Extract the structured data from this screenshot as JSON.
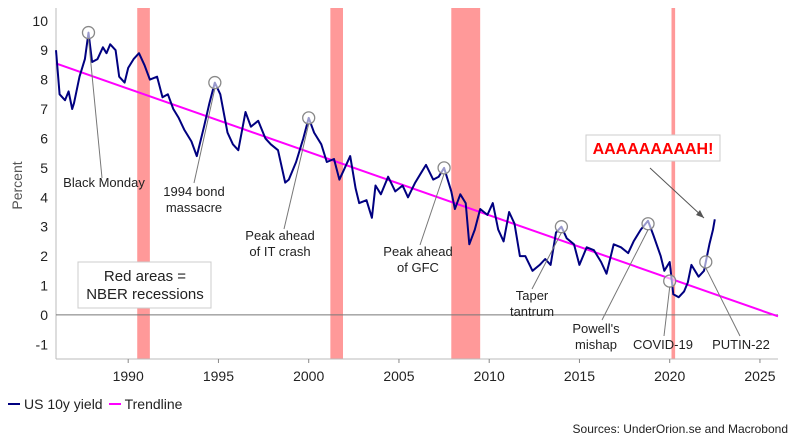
{
  "chart_data": {
    "type": "line",
    "title": "",
    "xlabel": "",
    "ylabel": "Percent",
    "xlim": [
      1986,
      2026
    ],
    "ylim": [
      -1.5,
      10.3
    ],
    "x_ticks": [
      "1990",
      "1995",
      "2000",
      "2005",
      "2010",
      "2015",
      "2020",
      "2025"
    ],
    "y_ticks": [
      "10",
      "9",
      "8",
      "7",
      "6",
      "5",
      "4",
      "3",
      "2",
      "1",
      "0",
      "-1"
    ],
    "grid": false,
    "series": [
      {
        "name": "US 10y yield",
        "color": "#000080",
        "points": [
          [
            1986.0,
            9.0
          ],
          [
            1986.2,
            7.5
          ],
          [
            1986.5,
            7.3
          ],
          [
            1986.7,
            7.6
          ],
          [
            1986.9,
            7.0
          ],
          [
            1987.0,
            7.2
          ],
          [
            1987.3,
            8.1
          ],
          [
            1987.6,
            8.7
          ],
          [
            1987.8,
            9.6
          ],
          [
            1988.0,
            8.6
          ],
          [
            1988.3,
            8.7
          ],
          [
            1988.6,
            9.1
          ],
          [
            1988.8,
            8.9
          ],
          [
            1989.0,
            9.2
          ],
          [
            1989.3,
            9.0
          ],
          [
            1989.5,
            8.1
          ],
          [
            1989.8,
            7.9
          ],
          [
            1990.0,
            8.4
          ],
          [
            1990.3,
            8.7
          ],
          [
            1990.6,
            8.9
          ],
          [
            1990.9,
            8.5
          ],
          [
            1991.2,
            8.0
          ],
          [
            1991.6,
            8.1
          ],
          [
            1991.9,
            7.4
          ],
          [
            1992.2,
            7.5
          ],
          [
            1992.5,
            7.0
          ],
          [
            1992.8,
            6.7
          ],
          [
            1993.1,
            6.3
          ],
          [
            1993.5,
            5.9
          ],
          [
            1993.8,
            5.4
          ],
          [
            1994.2,
            6.4
          ],
          [
            1994.5,
            7.2
          ],
          [
            1994.8,
            7.9
          ],
          [
            1995.1,
            7.5
          ],
          [
            1995.5,
            6.2
          ],
          [
            1995.8,
            5.8
          ],
          [
            1996.1,
            5.6
          ],
          [
            1996.5,
            6.9
          ],
          [
            1996.8,
            6.4
          ],
          [
            1997.2,
            6.6
          ],
          [
            1997.6,
            6.0
          ],
          [
            1997.9,
            5.8
          ],
          [
            1998.3,
            5.6
          ],
          [
            1998.7,
            4.5
          ],
          [
            1998.9,
            4.6
          ],
          [
            1999.3,
            5.2
          ],
          [
            1999.7,
            6.0
          ],
          [
            2000.0,
            6.7
          ],
          [
            2000.3,
            6.2
          ],
          [
            2000.7,
            5.8
          ],
          [
            2001.0,
            5.2
          ],
          [
            2001.4,
            5.3
          ],
          [
            2001.7,
            4.6
          ],
          [
            2002.0,
            5.0
          ],
          [
            2002.3,
            5.4
          ],
          [
            2002.6,
            4.3
          ],
          [
            2002.8,
            3.8
          ],
          [
            2003.2,
            3.9
          ],
          [
            2003.5,
            3.3
          ],
          [
            2003.7,
            4.4
          ],
          [
            2004.0,
            4.1
          ],
          [
            2004.4,
            4.7
          ],
          [
            2004.8,
            4.2
          ],
          [
            2005.2,
            4.4
          ],
          [
            2005.5,
            4.0
          ],
          [
            2005.9,
            4.5
          ],
          [
            2006.2,
            4.8
          ],
          [
            2006.5,
            5.1
          ],
          [
            2006.9,
            4.6
          ],
          [
            2007.2,
            4.7
          ],
          [
            2007.5,
            5.0
          ],
          [
            2007.9,
            4.2
          ],
          [
            2008.1,
            3.6
          ],
          [
            2008.4,
            4.1
          ],
          [
            2008.7,
            3.8
          ],
          [
            2008.9,
            2.4
          ],
          [
            2009.2,
            2.9
          ],
          [
            2009.5,
            3.6
          ],
          [
            2009.9,
            3.4
          ],
          [
            2010.2,
            3.8
          ],
          [
            2010.5,
            2.9
          ],
          [
            2010.8,
            2.5
          ],
          [
            2011.1,
            3.5
          ],
          [
            2011.4,
            3.1
          ],
          [
            2011.7,
            2.0
          ],
          [
            2012.0,
            2.0
          ],
          [
            2012.4,
            1.5
          ],
          [
            2012.8,
            1.7
          ],
          [
            2013.1,
            1.9
          ],
          [
            2013.4,
            1.7
          ],
          [
            2013.7,
            2.8
          ],
          [
            2014.0,
            3.0
          ],
          [
            2014.3,
            2.6
          ],
          [
            2014.7,
            2.4
          ],
          [
            2015.0,
            1.7
          ],
          [
            2015.4,
            2.3
          ],
          [
            2015.8,
            2.2
          ],
          [
            2016.2,
            1.8
          ],
          [
            2016.5,
            1.4
          ],
          [
            2016.9,
            2.4
          ],
          [
            2017.3,
            2.3
          ],
          [
            2017.7,
            2.1
          ],
          [
            2018.0,
            2.5
          ],
          [
            2018.4,
            2.9
          ],
          [
            2018.8,
            3.2
          ],
          [
            2019.1,
            2.7
          ],
          [
            2019.5,
            2.0
          ],
          [
            2019.7,
            1.5
          ],
          [
            2020.0,
            1.8
          ],
          [
            2020.2,
            0.7
          ],
          [
            2020.5,
            0.6
          ],
          [
            2020.8,
            0.8
          ],
          [
            2021.0,
            1.1
          ],
          [
            2021.2,
            1.7
          ],
          [
            2021.6,
            1.3
          ],
          [
            2021.9,
            1.5
          ],
          [
            2022.0,
            1.8
          ],
          [
            2022.2,
            2.4
          ],
          [
            2022.4,
            2.9
          ],
          [
            2022.5,
            3.25
          ]
        ]
      },
      {
        "name": "Trendline",
        "color": "#ff00ff",
        "points": [
          [
            1986.0,
            8.55
          ],
          [
            2026.0,
            -0.05
          ]
        ]
      }
    ],
    "recessions": [
      [
        1990.5,
        1991.2
      ],
      [
        2001.2,
        2001.9
      ],
      [
        2007.9,
        2009.5
      ],
      [
        2020.1,
        2020.3
      ]
    ],
    "markers": [
      [
        1987.8,
        9.6
      ],
      [
        1994.8,
        7.9
      ],
      [
        2000.0,
        6.7
      ],
      [
        2007.5,
        5.0
      ],
      [
        2014.0,
        3.0
      ],
      [
        2018.8,
        3.1
      ],
      [
        2020.0,
        1.15
      ],
      [
        2022.0,
        1.8
      ]
    ],
    "annotations": [
      {
        "text": "Black Monday",
        "x": 1987.8,
        "y": 9.6
      },
      {
        "text": "1994 bond\nmassacre",
        "x": 1994.8,
        "y": 7.9
      },
      {
        "text": "Peak ahead\nof IT crash",
        "x": 2000.0,
        "y": 6.7
      },
      {
        "text": "Peak ahead\nof GFC",
        "x": 2007.5,
        "y": 5.0
      },
      {
        "text": "Taper\ntantrum",
        "x": 2014.0,
        "y": 3.0
      },
      {
        "text": "Powell's\nmishap",
        "x": 2018.8,
        "y": 3.1
      },
      {
        "text": "COVID-19",
        "x": 2020.0,
        "y": 1.15
      },
      {
        "text": "PUTIN-22",
        "x": 2022.0,
        "y": 1.8
      },
      {
        "text": "AAAAAAAAAH!",
        "x": 2022.5,
        "y": 3.25
      }
    ],
    "note_box": "Red areas =\nNBER recessions",
    "colors": {
      "yield": "#000080",
      "trend": "#ff00ff",
      "recession": "#ff9999",
      "alert_bg": "#ffffff",
      "alert_text": "#ff0000"
    }
  },
  "legend": {
    "items": [
      {
        "label": "US 10y yield",
        "color": "#000080"
      },
      {
        "label": "Trendline",
        "color": "#ff00ff"
      }
    ]
  },
  "source": "Sources: UnderOrion.se and Macrobond"
}
